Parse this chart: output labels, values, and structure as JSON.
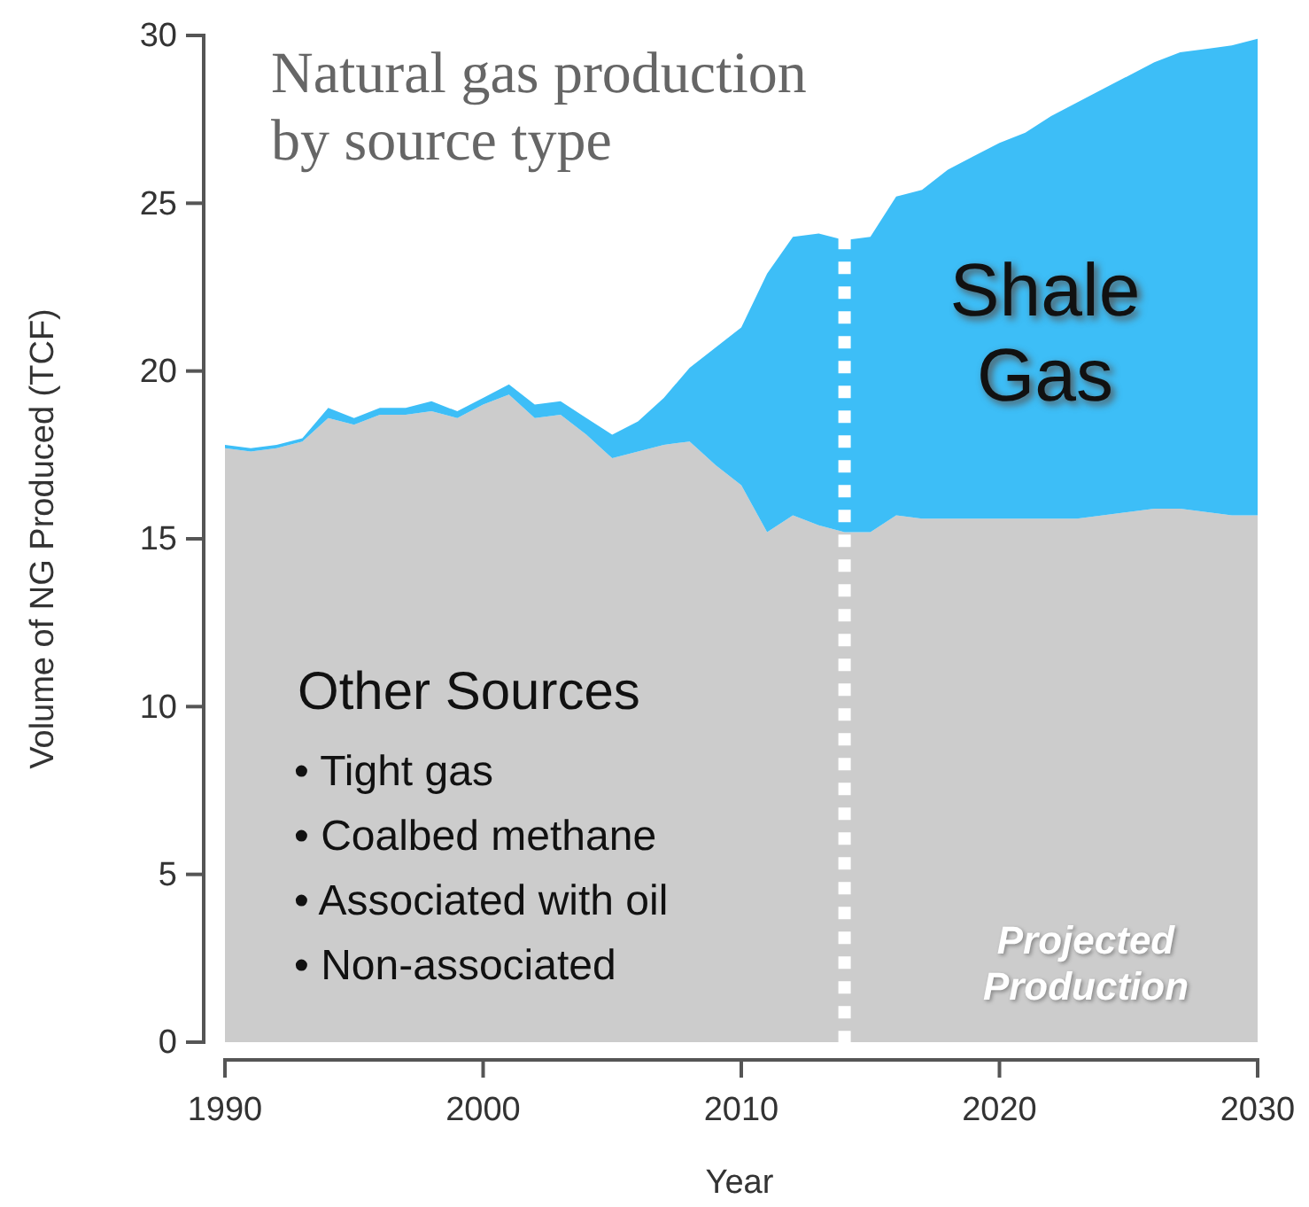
{
  "chart_data": {
    "type": "area",
    "stacked": true,
    "title": "Natural gas production by source type",
    "xlabel": "Year",
    "ylabel": "Volume of NG Produced (TCF)",
    "x": [
      1990,
      1991,
      1992,
      1993,
      1994,
      1995,
      1996,
      1997,
      1998,
      1999,
      2000,
      2001,
      2002,
      2003,
      2004,
      2005,
      2006,
      2007,
      2008,
      2009,
      2010,
      2011,
      2012,
      2013,
      2014,
      2015,
      2016,
      2017,
      2018,
      2019,
      2020,
      2021,
      2022,
      2023,
      2024,
      2025,
      2026,
      2027,
      2028,
      2029,
      2030
    ],
    "series": [
      {
        "name": "Other Sources",
        "color": "#cccccc",
        "values": [
          17.7,
          17.6,
          17.7,
          17.9,
          18.6,
          18.4,
          18.7,
          18.7,
          18.8,
          18.6,
          19.0,
          19.3,
          18.6,
          18.7,
          18.1,
          17.4,
          17.6,
          17.8,
          17.9,
          17.2,
          16.6,
          15.2,
          15.7,
          15.4,
          15.2,
          15.2,
          15.7,
          15.6,
          15.6,
          15.6,
          15.6,
          15.6,
          15.6,
          15.6,
          15.7,
          15.8,
          15.9,
          15.9,
          15.8,
          15.7,
          15.7
        ]
      },
      {
        "name": "Shale Gas",
        "color": "#3dbef7",
        "values": [
          0.1,
          0.1,
          0.1,
          0.1,
          0.3,
          0.2,
          0.2,
          0.2,
          0.3,
          0.2,
          0.2,
          0.3,
          0.4,
          0.4,
          0.5,
          0.7,
          0.9,
          1.4,
          2.2,
          3.5,
          4.7,
          7.7,
          8.3,
          8.7,
          8.7,
          8.8,
          9.5,
          9.8,
          10.4,
          10.8,
          11.2,
          11.5,
          12.0,
          12.4,
          12.7,
          13.0,
          13.3,
          13.6,
          13.8,
          14.0,
          14.2
        ]
      }
    ],
    "xlim": [
      1990,
      2030
    ],
    "xticks": [
      1990,
      2000,
      2010,
      2020,
      2030
    ],
    "ylim": [
      0,
      30
    ],
    "yticks": [
      0,
      5,
      10,
      15,
      20,
      25,
      30
    ],
    "grid": false,
    "ref_lines": [
      {
        "axis": "x",
        "value": 2014,
        "color": "#ffffff",
        "line_style": "dotted"
      }
    ],
    "annotations": [
      "• Tight gas",
      "• Coalbed methane",
      "• Associated with oil",
      "• Non-associated",
      "Projected Production"
    ]
  }
}
